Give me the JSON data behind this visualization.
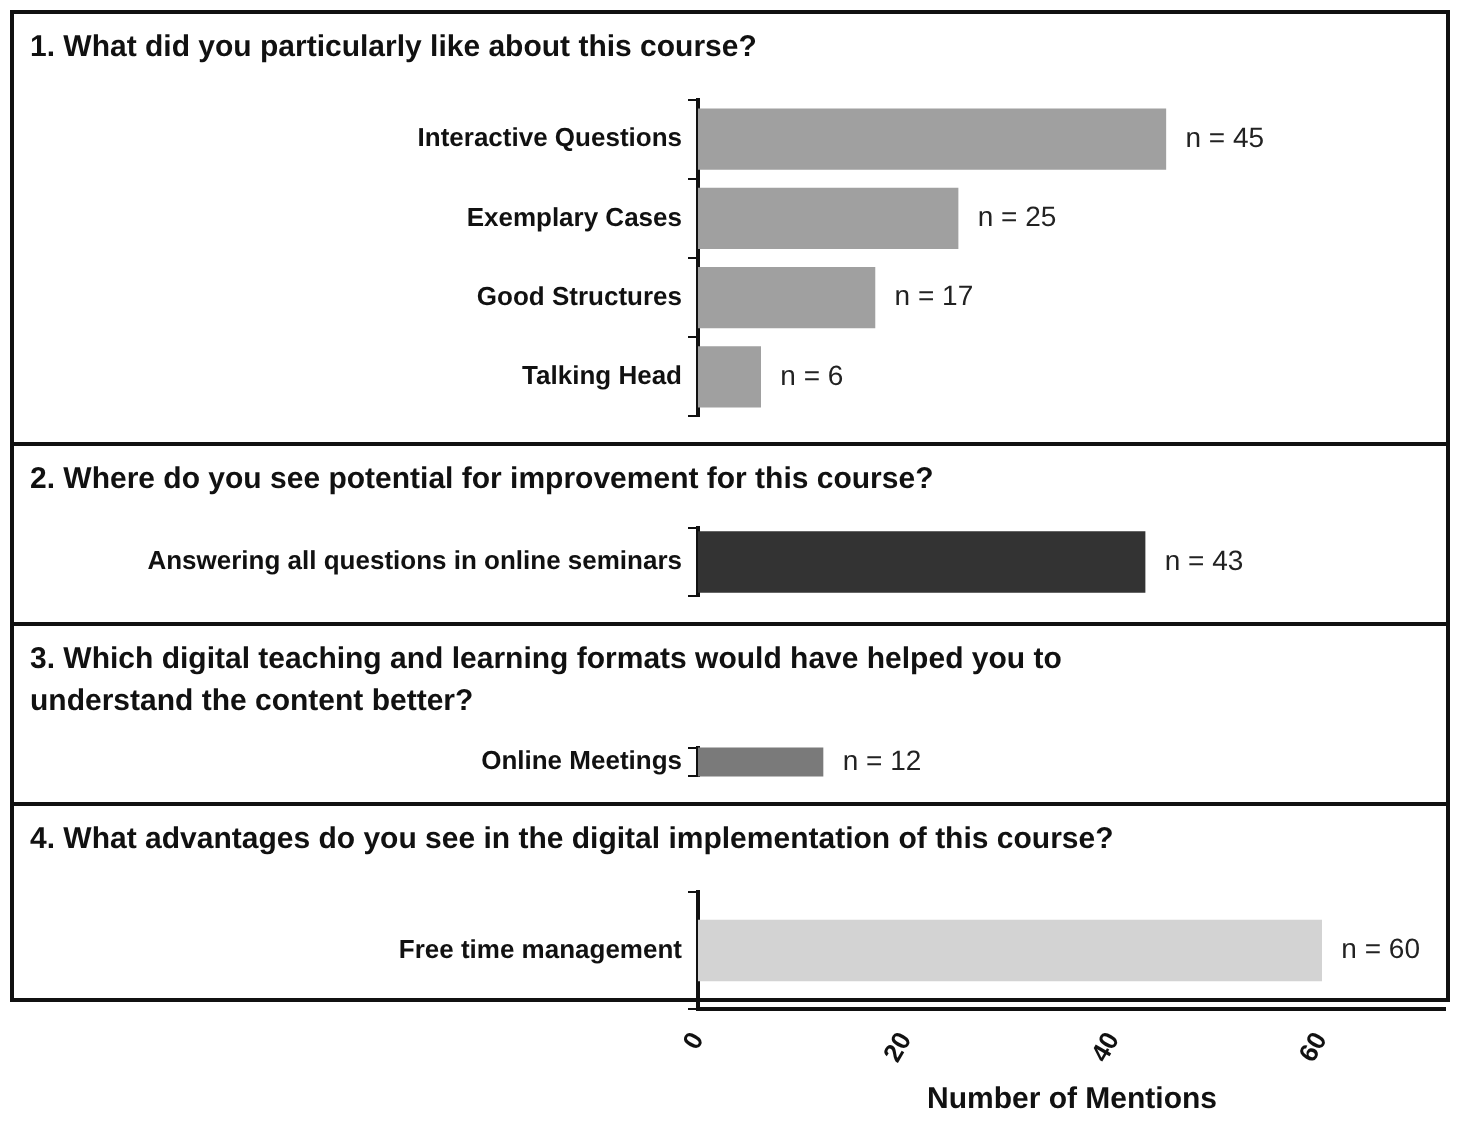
{
  "chart_data": [
    {
      "type": "bar",
      "orientation": "horizontal",
      "title": "1. What did you particularly like about this course?",
      "categories": [
        "Interactive Questions",
        "Exemplary Cases",
        "Good Structures",
        "Talking Head"
      ],
      "values": [
        45,
        25,
        17,
        6
      ],
      "color": "#a0a0a0",
      "value_labels": [
        "n = 45",
        "n = 25",
        "n = 17",
        "n = 6"
      ],
      "xlim": [
        0,
        72
      ],
      "xticks": [
        0,
        20,
        40,
        60
      ],
      "tick_labels": "y"
    },
    {
      "type": "bar",
      "orientation": "horizontal",
      "title": "2. Where do you see potential for improvement for this course?",
      "categories": [
        "Answering all questions in online seminars"
      ],
      "values": [
        43
      ],
      "color": "#333333",
      "value_labels": [
        "n = 43"
      ],
      "xlim": [
        0,
        72
      ],
      "xticks": [
        0,
        20,
        40,
        60
      ],
      "tick_labels": "y"
    },
    {
      "type": "bar",
      "orientation": "horizontal",
      "title": "3. Which digital teaching and learning formats would have helped you to understand the content better?",
      "categories": [
        "Online Meetings"
      ],
      "values": [
        12
      ],
      "color": "#7a7a7a",
      "value_labels": [
        "n = 12"
      ],
      "xlim": [
        0,
        72
      ],
      "xticks": [
        0,
        20,
        40,
        60
      ],
      "tick_labels": "y"
    },
    {
      "type": "bar",
      "orientation": "horizontal",
      "title": "4. What advantages do you see in the digital implementation of this course?",
      "categories": [
        "Free time management"
      ],
      "values": [
        60
      ],
      "color": "#d3d3d3",
      "value_labels": [
        "n = 60"
      ],
      "xlim": [
        0,
        72
      ],
      "xticks": [
        0,
        20,
        40,
        60
      ],
      "xlabel": "Number of Mentions"
    }
  ]
}
